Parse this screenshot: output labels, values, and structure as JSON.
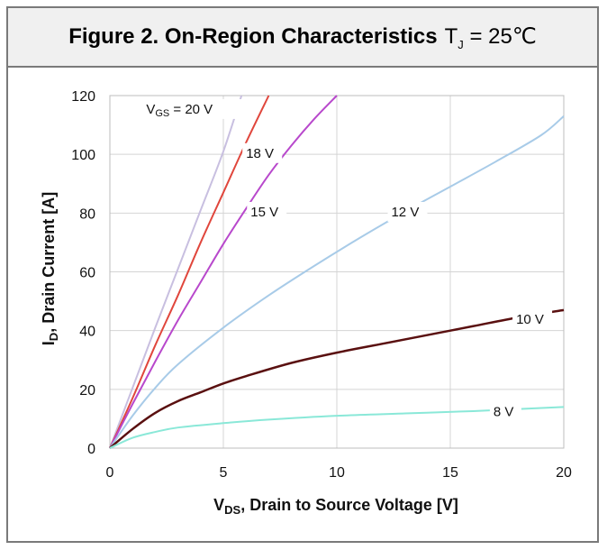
{
  "header": {
    "title_main": "Figure 2. On-Region Characteristics",
    "title_cond_prefix": "T",
    "title_cond_sub": "J",
    "title_cond_suffix": " = 25℃"
  },
  "chart_data": {
    "type": "line",
    "xlabel": "V_DS, Drain to Source Voltage [V]",
    "ylabel": "I_D, Drain Current [A]",
    "xlim": [
      0,
      20
    ],
    "ylim": [
      0,
      120
    ],
    "xticks": [
      0,
      5,
      10,
      15,
      20
    ],
    "yticks": [
      0,
      20,
      40,
      60,
      80,
      100,
      120
    ],
    "grid": true,
    "series": [
      {
        "name": "V_GS = 20 V",
        "color": "#c8bfe0",
        "x": [
          0,
          1,
          2,
          3,
          4,
          5,
          5.8
        ],
        "y": [
          0,
          20.5,
          41,
          61,
          81,
          101,
          120
        ]
      },
      {
        "name": "18 V",
        "color": "#e0463c",
        "x": [
          0,
          1,
          2,
          3,
          4,
          5,
          6,
          7
        ],
        "y": [
          0,
          17,
          35,
          52,
          70,
          87,
          104,
          120
        ]
      },
      {
        "name": "15 V",
        "color": "#b848cc",
        "x": [
          0,
          1,
          2,
          3,
          4,
          5,
          6,
          7,
          8,
          9,
          10
        ],
        "y": [
          0,
          15,
          29.5,
          43.5,
          56.5,
          69.5,
          81.5,
          93,
          103,
          112,
          120
        ]
      },
      {
        "name": "12 V",
        "color": "#a8cbe8",
        "x": [
          0,
          1,
          2,
          3,
          5,
          7,
          9,
          11,
          13,
          15,
          17,
          19,
          20
        ],
        "y": [
          0,
          11,
          20.5,
          28.5,
          41,
          52,
          62,
          71.5,
          80.5,
          89,
          97.5,
          106.5,
          113
        ]
      },
      {
        "name": "10 V",
        "color": "#5a1010",
        "x": [
          0,
          1,
          2,
          3,
          4,
          5,
          6,
          8,
          10,
          12,
          14,
          16,
          18,
          20
        ],
        "y": [
          0,
          6.5,
          12,
          16,
          19,
          22,
          24.5,
          29,
          32.5,
          35.5,
          38.5,
          41.5,
          44.5,
          47
        ]
      },
      {
        "name": "8 V",
        "color": "#8ae8d8",
        "x": [
          0,
          1,
          2,
          3,
          5,
          7,
          10,
          13,
          16,
          20
        ],
        "y": [
          0,
          3.5,
          5.5,
          7,
          8.5,
          9.7,
          11,
          11.8,
          12.6,
          14
        ]
      }
    ],
    "labels": [
      {
        "text": "V",
        "sub": "GS",
        "rest": " = 20 V",
        "x": 1.6,
        "y": 114.5
      },
      {
        "text": "18 V",
        "x": 6.0,
        "y": 99.5
      },
      {
        "text": "15 V",
        "x": 6.2,
        "y": 79.5
      },
      {
        "text": "12 V",
        "x": 12.4,
        "y": 79.5
      },
      {
        "text": "10 V",
        "x": 17.9,
        "y": 43
      },
      {
        "text": "8 V",
        "x": 16.9,
        "y": 11.5
      }
    ]
  },
  "axis_title": {
    "x_prefix": "V",
    "x_sub": "DS",
    "x_rest": ", Drain to Source Voltage [V]",
    "y_prefix": "I",
    "y_sub": "D",
    "y_rest": ", Drain Current [A]"
  }
}
